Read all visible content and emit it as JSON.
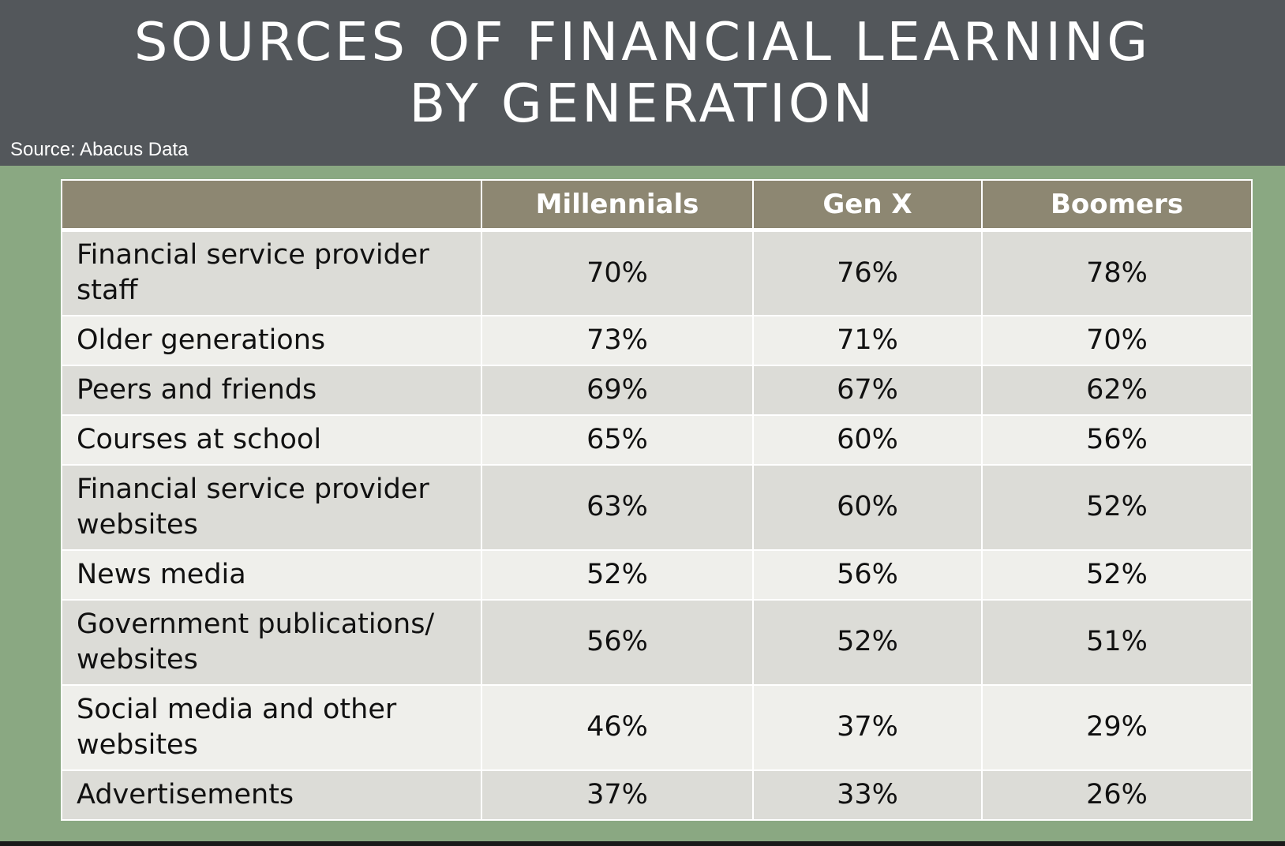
{
  "title_line1": "SOURCES OF FINANCIAL LEARNING",
  "title_line2": "BY GENERATION",
  "source": "Source: Abacus Data",
  "colors": {
    "header_bg": "#53575b",
    "slide_bg": "#8aa882",
    "table_header_bg": "#8d8772",
    "row_dark": "#dcdcd7",
    "row_light": "#efefeb"
  },
  "chart_data": {
    "type": "table",
    "title": "SOURCES OF FINANCIAL LEARNING BY GENERATION",
    "columns": [
      "",
      "Millennials",
      "Gen X",
      "Boomers"
    ],
    "rows": [
      {
        "label": "Financial service provider staff",
        "values": [
          "70%",
          "76%",
          "78%"
        ]
      },
      {
        "label": "Older generations",
        "values": [
          "73%",
          "71%",
          "70%"
        ]
      },
      {
        "label": "Peers and friends",
        "values": [
          "69%",
          "67%",
          "62%"
        ]
      },
      {
        "label": "Courses at school",
        "values": [
          "65%",
          "60%",
          "56%"
        ]
      },
      {
        "label": "Financial service provider websites",
        "values": [
          "63%",
          "60%",
          "52%"
        ]
      },
      {
        "label": "News media",
        "values": [
          "52%",
          "56%",
          "52%"
        ]
      },
      {
        "label": "Government publications/ websites",
        "values": [
          "56%",
          "52%",
          "51%"
        ]
      },
      {
        "label": "Social media and other websites",
        "values": [
          "46%",
          "37%",
          "29%"
        ]
      },
      {
        "label": "Advertisements",
        "values": [
          "37%",
          "33%",
          "26%"
        ]
      }
    ]
  }
}
